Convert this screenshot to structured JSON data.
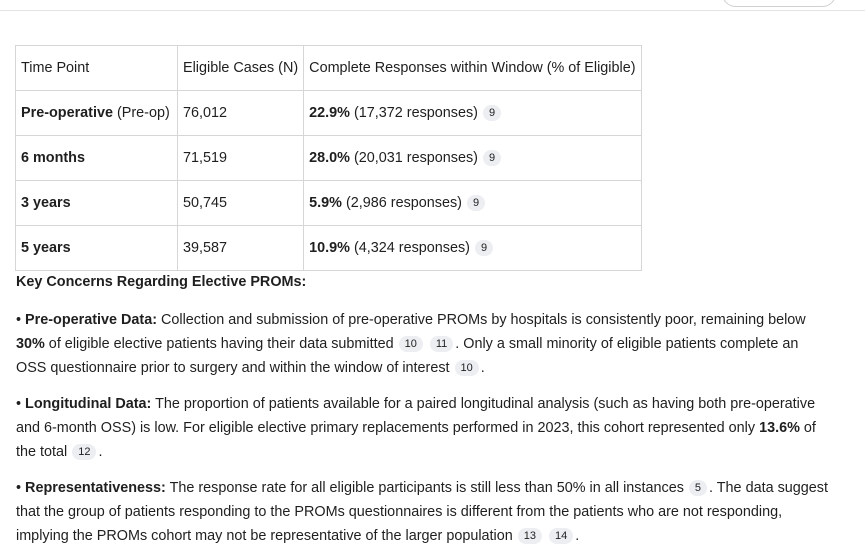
{
  "table": {
    "header": [
      "Time Point",
      "Eligible Cases (N)",
      "Complete Responses within Window (% of Eligible)"
    ],
    "rows": [
      {
        "time": {
          "bold": "Pre-operative",
          "rest": " (Pre-op)"
        },
        "cases": "76,012",
        "response": {
          "bold": "22.9%",
          "rest": " (17,372 responses)",
          "cites": [
            "9"
          ]
        }
      },
      {
        "time": {
          "bold": "6 months"
        },
        "cases": "71,519",
        "response": {
          "bold": "28.0%",
          "rest": " (20,031 responses)",
          "cites": [
            "9"
          ]
        }
      },
      {
        "time": {
          "bold": "3 years"
        },
        "cases": "50,745",
        "response": {
          "bold": "5.9%",
          "rest": " (2,986 responses)",
          "cites": [
            "9"
          ]
        }
      },
      {
        "time": {
          "bold": "5 years"
        },
        "cases": "39,587",
        "response": {
          "bold": "10.9%",
          "rest": " (4,324 responses)",
          "cites": [
            "9"
          ]
        }
      }
    ]
  },
  "section": {
    "heading": "Key Concerns Regarding Elective PROMs:",
    "paragraphs": [
      [
        {
          "b": "Pre-operative Data:"
        },
        {
          "t": " Collection and submission of pre-operative PROMs by hospitals is consistently poor, remaining below "
        },
        {
          "b": "30%"
        },
        {
          "t": " of eligible elective patients having their data submitted"
        },
        {
          "c": "10"
        },
        {
          "c": "11"
        },
        {
          "t": ". Only a small minority of eligible patients complete an OSS questionnaire prior to surgery and within the window of interest"
        },
        {
          "c": "10"
        },
        {
          "t": "."
        }
      ],
      [
        {
          "b": "Longitudinal Data:"
        },
        {
          "t": " The proportion of patients available for a paired longitudinal analysis (such as having both pre-operative and 6-month OSS) is low. For eligible elective primary replacements performed in 2023, this cohort represented only "
        },
        {
          "b": "13.6%"
        },
        {
          "t": " of the total"
        },
        {
          "c": "12"
        },
        {
          "t": "."
        }
      ],
      [
        {
          "b": "Representativeness:"
        },
        {
          "t": " The response rate for all eligible participants is still less than 50% in all instances"
        },
        {
          "c": "5"
        },
        {
          "t": ". The data suggest that the group of patients responding to the PROMs questionnaires is different from the patients who are not responding, implying the PROMs cohort may not be representative of the larger population"
        },
        {
          "c": "13"
        },
        {
          "c": "14"
        },
        {
          "t": "."
        }
      ]
    ]
  }
}
